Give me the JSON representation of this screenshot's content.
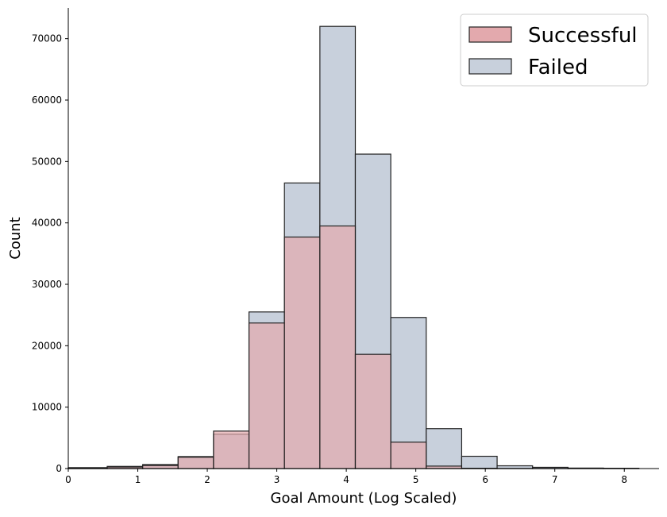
{
  "chart_data": {
    "type": "histogram",
    "title": "",
    "xlabel": "Goal Amount (Log Scaled)",
    "ylabel": "Count",
    "xlim": [
      0,
      8.5
    ],
    "ylim": [
      0,
      75000
    ],
    "xticks": [
      0,
      1,
      2,
      3,
      4,
      5,
      6,
      7,
      8
    ],
    "yticks": [
      0,
      10000,
      20000,
      30000,
      40000,
      50000,
      60000,
      70000
    ],
    "grid": false,
    "legend_placement": "top-right",
    "bin_edges": [
      0,
      0.56,
      1.07,
      1.58,
      2.09,
      2.6,
      3.11,
      3.62,
      4.13,
      4.64,
      5.15,
      5.66,
      6.17,
      6.68,
      7.19,
      7.7,
      8.21
    ],
    "series": [
      {
        "name": "Failed",
        "color": "#c8d0dc",
        "values": [
          150,
          350,
          650,
          1950,
          5600,
          25500,
          46500,
          72000,
          51200,
          24600,
          6500,
          2000,
          450,
          200,
          80,
          50
        ]
      },
      {
        "name": "Successful",
        "color": "#e3a9ad",
        "values": [
          100,
          250,
          500,
          1850,
          6100,
          23700,
          37700,
          39500,
          18600,
          4300,
          400,
          50,
          10,
          5,
          2,
          1
        ]
      }
    ]
  }
}
